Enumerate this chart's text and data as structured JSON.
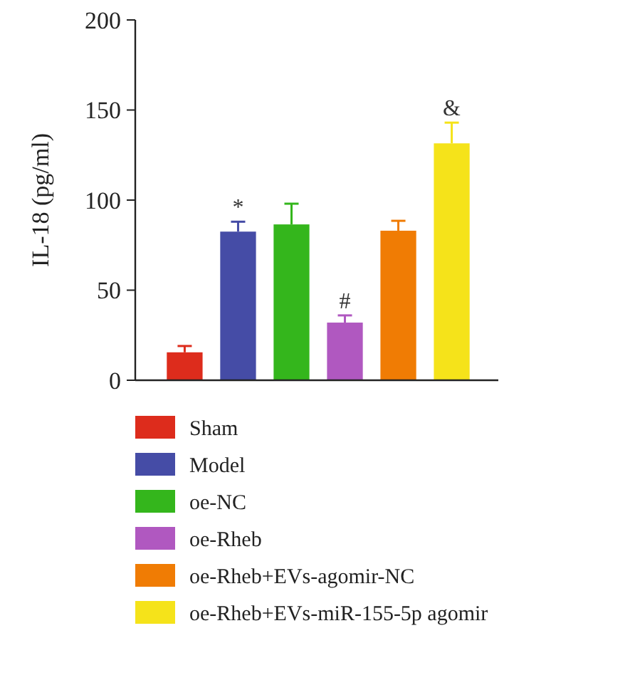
{
  "chart_data": {
    "type": "bar",
    "ylabel": "IL-18 (pg/ml)",
    "categories": [
      null
    ],
    "series": [
      {
        "name": "Sham",
        "color": "#dd2c1c",
        "values": [
          15.5
        ],
        "errors": [
          3.5
        ]
      },
      {
        "name": "Model",
        "color": "#454ca6",
        "values": [
          82.5
        ],
        "errors": [
          5.5
        ],
        "value_labels": [
          "*"
        ]
      },
      {
        "name": "oe-NC",
        "color": "#34b61c",
        "values": [
          86.5
        ],
        "errors": [
          11.5
        ]
      },
      {
        "name": "oe-Rheb",
        "color": "#b058c0",
        "values": [
          32
        ],
        "errors": [
          4
        ],
        "value_labels": [
          "#"
        ]
      },
      {
        "name": "oe-Rheb+EVs-agomir-NC",
        "color": "#f07c04",
        "values": [
          83
        ],
        "errors": [
          5.5
        ]
      },
      {
        "name": "oe-Rheb+EVs-miR-155-5p agomir",
        "color": "#f5e31a",
        "values": [
          131.5
        ],
        "errors": [
          11.5
        ],
        "value_labels": [
          "&"
        ]
      }
    ],
    "ylim": [
      0,
      200
    ],
    "yticks": [
      0,
      50,
      100,
      150,
      200
    ],
    "tick_labels": "y",
    "legend": "bottom"
  }
}
